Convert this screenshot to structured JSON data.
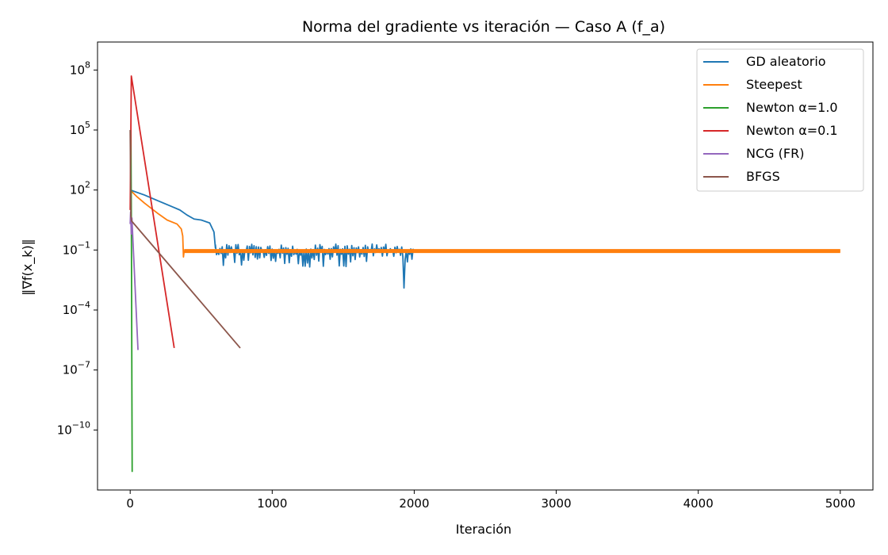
{
  "chart_data": {
    "type": "line",
    "title": "Norma del gradiente vs iteración — Caso A (f_a)",
    "xlabel": "Iteración",
    "ylabel": "‖∇f(x_k)‖",
    "yscale": "log",
    "xlim": [
      -230,
      5230
    ],
    "ylim_log10": [
      -13.0,
      9.4
    ],
    "x_ticks": [
      0,
      1000,
      2000,
      3000,
      4000,
      5000
    ],
    "x_tick_labels": [
      "0",
      "1000",
      "2000",
      "3000",
      "4000",
      "5000"
    ],
    "y_ticks_log10": [
      8,
      5,
      2,
      -1,
      -4,
      -7,
      -10
    ],
    "y_tick_labels": [
      {
        "base": "10",
        "exp": "8"
      },
      {
        "base": "10",
        "exp": "5"
      },
      {
        "base": "10",
        "exp": "2"
      },
      {
        "base": "10",
        "exp": "−1"
      },
      {
        "base": "10",
        "exp": "−4"
      },
      {
        "base": "10",
        "exp": "−7"
      },
      {
        "base": "10",
        "exp": "−10"
      }
    ],
    "grid": false,
    "legend_position": "top-right",
    "series": [
      {
        "name": "GD aleatorio",
        "color": "#1f77b4",
        "points": [
          [
            0,
            2.0
          ],
          [
            100,
            1.75
          ],
          [
            200,
            1.45
          ],
          [
            300,
            1.15
          ],
          [
            350,
            1.0
          ],
          [
            400,
            0.75
          ],
          [
            450,
            0.55
          ],
          [
            500,
            0.5
          ],
          [
            560,
            0.35
          ],
          [
            590,
            -0.1
          ],
          [
            600,
            -0.9
          ]
        ],
        "noise": {
          "x_start": 600,
          "x_end": 2000,
          "step": 8,
          "base": -1.05,
          "spread_up": 0.35,
          "spread_down": 1.0,
          "dip": {
            "x": 1925,
            "value": -2.9
          }
        }
      },
      {
        "name": "Steepest",
        "color": "#ff7f0e",
        "points": [
          [
            0,
            2.0
          ],
          [
            50,
            1.65
          ],
          [
            100,
            1.35
          ],
          [
            200,
            0.8
          ],
          [
            260,
            0.5
          ],
          [
            330,
            0.3
          ],
          [
            360,
            0.05
          ],
          [
            370,
            -0.3
          ],
          [
            375,
            -1.35
          ],
          [
            380,
            -1.05
          ],
          [
            5000,
            -1.05
          ]
        ]
      },
      {
        "name": "Newton α=1.0",
        "color": "#2ca02c",
        "points": [
          [
            5,
            5.0
          ],
          [
            8,
            1.0
          ],
          [
            10,
            -3.0
          ],
          [
            12,
            -8.0
          ],
          [
            14,
            -12.1
          ]
        ]
      },
      {
        "name": "Newton α=0.1",
        "color": "#d62728",
        "points": [
          [
            0,
            1.0
          ],
          [
            8,
            7.7
          ],
          [
            310,
            -5.9
          ]
        ]
      },
      {
        "name": "NCG (FR)",
        "color": "#9467bd",
        "points": [
          [
            0,
            0.3
          ],
          [
            3,
            0.9
          ],
          [
            8,
            -0.2
          ],
          [
            12,
            0.6
          ],
          [
            55,
            -6.0
          ]
        ]
      },
      {
        "name": "BFGS",
        "color": "#8c564b",
        "points": [
          [
            0,
            5.0
          ],
          [
            3,
            2.5
          ],
          [
            5,
            0.7
          ],
          [
            10,
            0.45
          ],
          [
            775,
            -5.9
          ]
        ]
      }
    ]
  }
}
